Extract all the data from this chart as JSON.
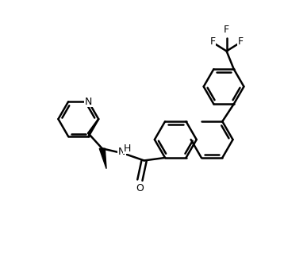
{
  "background": "#ffffff",
  "line_color": "#000000",
  "line_width": 1.8,
  "figsize": [
    3.58,
    3.38
  ],
  "dpi": 100,
  "xlim": [
    0,
    10
  ],
  "ylim": [
    0,
    9.4
  ]
}
